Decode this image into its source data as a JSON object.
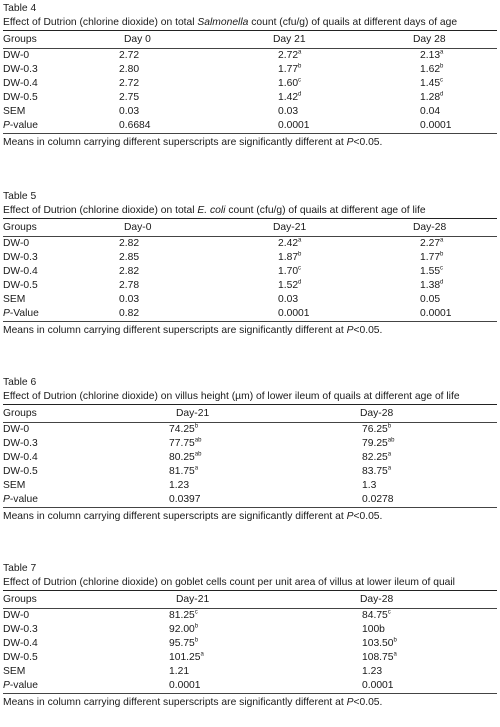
{
  "tables": [
    {
      "label": "Table 4",
      "caption_pre": "Effect of Dutrion (chlorine dioxide) on total ",
      "caption_em": "Salmonella",
      "caption_post": " count (cfu/g) of quails at different days of age",
      "headers": [
        "Groups",
        "Day 0",
        "Day 21",
        "Day 28"
      ],
      "rows": [
        [
          {
            "v": "DW-0"
          },
          {
            "v": "2.72"
          },
          {
            "v": "2.72",
            "s": "a"
          },
          {
            "v": "2.13",
            "s": "a"
          }
        ],
        [
          {
            "v": "DW-0.3"
          },
          {
            "v": "2.80"
          },
          {
            "v": "1.77",
            "s": "b"
          },
          {
            "v": "1.62",
            "s": "b"
          }
        ],
        [
          {
            "v": "DW-0.4"
          },
          {
            "v": "2.72"
          },
          {
            "v": "1.60",
            "s": "c"
          },
          {
            "v": "1.45",
            "s": "c"
          }
        ],
        [
          {
            "v": "DW-0.5"
          },
          {
            "v": "2.75"
          },
          {
            "v": "1.42",
            "s": "d"
          },
          {
            "v": "1.28",
            "s": "d"
          }
        ],
        [
          {
            "v": "SEM"
          },
          {
            "v": "0.03"
          },
          {
            "v": "0.03"
          },
          {
            "v": "0.04"
          }
        ],
        [
          {
            "v": "P",
            "i": true,
            "t": "-value"
          },
          {
            "v": "0.6684"
          },
          {
            "v": "0.0001"
          },
          {
            "v": "0.0001"
          }
        ]
      ],
      "note": "Means in column carrying different superscripts are significantly different at P<0.05."
    },
    {
      "label": "Table 5",
      "caption_pre": "Effect of Dutrion (chlorine dioxide) on total ",
      "caption_em": "E. coli",
      "caption_post": " count (cfu/g) of quails at different age of life",
      "headers": [
        "Groups",
        "Day-0",
        "Day-21",
        "Day-28"
      ],
      "rows": [
        [
          {
            "v": "DW-0"
          },
          {
            "v": "2.82"
          },
          {
            "v": "2.42",
            "s": "a"
          },
          {
            "v": "2.27",
            "s": "a"
          }
        ],
        [
          {
            "v": "DW-0.3"
          },
          {
            "v": "2.85"
          },
          {
            "v": "1.87",
            "s": "b"
          },
          {
            "v": "1.77",
            "s": "b"
          }
        ],
        [
          {
            "v": "DW-0.4"
          },
          {
            "v": "2.82"
          },
          {
            "v": "1.70",
            "s": "c"
          },
          {
            "v": "1.55",
            "s": "c"
          }
        ],
        [
          {
            "v": "DW-0.5"
          },
          {
            "v": "2.78"
          },
          {
            "v": "1.52",
            "s": "d"
          },
          {
            "v": "1.38",
            "s": "d"
          }
        ],
        [
          {
            "v": "SEM"
          },
          {
            "v": "0.03"
          },
          {
            "v": "0.03"
          },
          {
            "v": "0.05"
          }
        ],
        [
          {
            "v": "P",
            "i": true,
            "t": "-Value"
          },
          {
            "v": "0.82"
          },
          {
            "v": "0.0001"
          },
          {
            "v": "0.0001"
          }
        ]
      ],
      "note": "Means in column carrying different superscripts are significantly different at P<0.05."
    },
    {
      "label": "Table 6",
      "caption_pre": "Effect of Dutrion (chlorine dioxide) on villus height (µm) of lower ileum of quails at different age of life",
      "caption_em": "",
      "caption_post": "",
      "headers": [
        "Groups",
        "Day-21",
        "Day-28"
      ],
      "rows": [
        [
          {
            "v": "DW-0"
          },
          {
            "v": "74.25",
            "s": "b"
          },
          {
            "v": "76.25",
            "s": "b"
          }
        ],
        [
          {
            "v": "DW-0.3"
          },
          {
            "v": "77.75",
            "s": "ab"
          },
          {
            "v": "79.25",
            "s": "ab"
          }
        ],
        [
          {
            "v": "DW-0.4"
          },
          {
            "v": "80.25",
            "s": "ab"
          },
          {
            "v": "82.25",
            "s": "a"
          }
        ],
        [
          {
            "v": "DW-0.5"
          },
          {
            "v": "81.75",
            "s": "a"
          },
          {
            "v": "83.75",
            "s": "a"
          }
        ],
        [
          {
            "v": "SEM"
          },
          {
            "v": "1.23"
          },
          {
            "v": "1.3"
          }
        ],
        [
          {
            "v": "P",
            "i": true,
            "t": "-value"
          },
          {
            "v": "0.0397"
          },
          {
            "v": "0.0278"
          }
        ]
      ],
      "note": "Means in column carrying different superscripts are significantly different at P<0.05."
    },
    {
      "label": "Table 7",
      "caption_pre": "Effect of Dutrion (chlorine dioxide) on goblet cells count per unit area of villus at lower ileum of quail",
      "caption_em": "",
      "caption_post": "",
      "headers": [
        "Groups",
        "Day-21",
        "Day-28"
      ],
      "rows": [
        [
          {
            "v": "DW-0"
          },
          {
            "v": "81.25",
            "s": "c"
          },
          {
            "v": "84.75",
            "s": "c"
          }
        ],
        [
          {
            "v": "DW-0.3"
          },
          {
            "v": "92.00",
            "s": "b"
          },
          {
            "v": "100b"
          }
        ],
        [
          {
            "v": "DW-0.4"
          },
          {
            "v": "95.75",
            "s": "b"
          },
          {
            "v": "103.50",
            "s": "b"
          }
        ],
        [
          {
            "v": "DW-0.5"
          },
          {
            "v": "101.25",
            "s": "a"
          },
          {
            "v": "108.75",
            "s": "a"
          }
        ],
        [
          {
            "v": "SEM"
          },
          {
            "v": "1.21"
          },
          {
            "v": "1.23"
          }
        ],
        [
          {
            "v": "P",
            "i": true,
            "t": "-value"
          },
          {
            "v": "0.0001"
          },
          {
            "v": "0.0001"
          }
        ]
      ],
      "note": "Means in column carrying different superscripts are significantly different at P<0.05."
    }
  ]
}
